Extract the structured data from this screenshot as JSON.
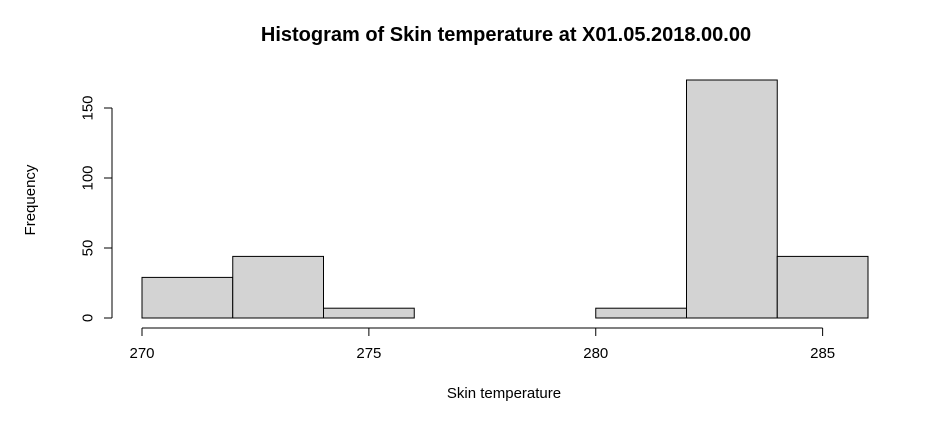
{
  "chart_data": {
    "type": "bar",
    "title": "Histogram of Skin temperature at X01.05.2018.00.00",
    "xlabel": "Skin temperature",
    "ylabel": "Frequency",
    "bins": [
      {
        "start": 270,
        "end": 272,
        "count": 29
      },
      {
        "start": 272,
        "end": 274,
        "count": 44
      },
      {
        "start": 274,
        "end": 276,
        "count": 7
      },
      {
        "start": 276,
        "end": 278,
        "count": 0
      },
      {
        "start": 278,
        "end": 280,
        "count": 0
      },
      {
        "start": 280,
        "end": 282,
        "count": 7
      },
      {
        "start": 282,
        "end": 284,
        "count": 170
      },
      {
        "start": 284,
        "end": 286,
        "count": 44
      }
    ],
    "xlim": [
      270,
      286
    ],
    "ylim": [
      0,
      170
    ],
    "x_ticks": [
      270,
      275,
      280,
      285
    ],
    "x_tick_labels": [
      "270",
      "275",
      "280",
      "285"
    ],
    "y_ticks": [
      0,
      50,
      100,
      150
    ],
    "y_tick_labels": [
      "0",
      "50",
      "100",
      "150"
    ],
    "bar_color": "#d3d3d3",
    "edge_color": "#000000",
    "grid": false
  }
}
